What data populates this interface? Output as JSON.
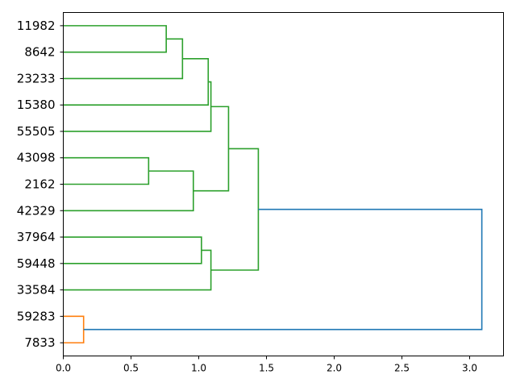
{
  "chart_data": {
    "type": "dendrogram",
    "orientation": "left",
    "title": "",
    "xlabel": "",
    "ylabel": "",
    "xlim": [
      0,
      3.25
    ],
    "x_ticks": [
      "0.0",
      "0.5",
      "1.0",
      "1.5",
      "2.0",
      "2.5",
      "3.0"
    ],
    "x_tick_values": [
      0,
      0.5,
      1.0,
      1.5,
      2.0,
      2.5,
      3.0
    ],
    "leaves": [
      "11982",
      "8642",
      "23233",
      "15380",
      "55505",
      "43098",
      "2162",
      "42329",
      "37964",
      "59448",
      "33584",
      "59283",
      "7833"
    ],
    "colors": {
      "cluster_a": "#2ca02c",
      "cluster_b": "#ff7f0e",
      "root": "#1f77b4"
    },
    "merges": [
      {
        "id": "n1",
        "children": [
          "11982",
          "8642"
        ],
        "height": 0.76,
        "color": "cluster_a"
      },
      {
        "id": "n2",
        "children": [
          "n1",
          "23233"
        ],
        "height": 0.88,
        "color": "cluster_a"
      },
      {
        "id": "n3",
        "children": [
          "n2",
          "15380"
        ],
        "height": 1.07,
        "color": "cluster_a"
      },
      {
        "id": "n4",
        "children": [
          "n3",
          "55505"
        ],
        "height": 1.09,
        "color": "cluster_a"
      },
      {
        "id": "n5",
        "children": [
          "43098",
          "2162"
        ],
        "height": 0.63,
        "color": "cluster_a"
      },
      {
        "id": "n6",
        "children": [
          "n5",
          "42329"
        ],
        "height": 0.96,
        "color": "cluster_a"
      },
      {
        "id": "n7",
        "children": [
          "n4",
          "n6"
        ],
        "height": 1.22,
        "color": "cluster_a"
      },
      {
        "id": "n8",
        "children": [
          "37964",
          "59448"
        ],
        "height": 1.02,
        "color": "cluster_a"
      },
      {
        "id": "n9",
        "children": [
          "n8",
          "33584"
        ],
        "height": 1.09,
        "color": "cluster_a"
      },
      {
        "id": "n10",
        "children": [
          "n7",
          "n9"
        ],
        "height": 1.44,
        "color": "cluster_a"
      },
      {
        "id": "n11",
        "children": [
          "59283",
          "7833"
        ],
        "height": 0.15,
        "color": "cluster_b"
      },
      {
        "id": "n12",
        "children": [
          "n10",
          "n11"
        ],
        "height": 3.09,
        "color": "root"
      }
    ]
  }
}
